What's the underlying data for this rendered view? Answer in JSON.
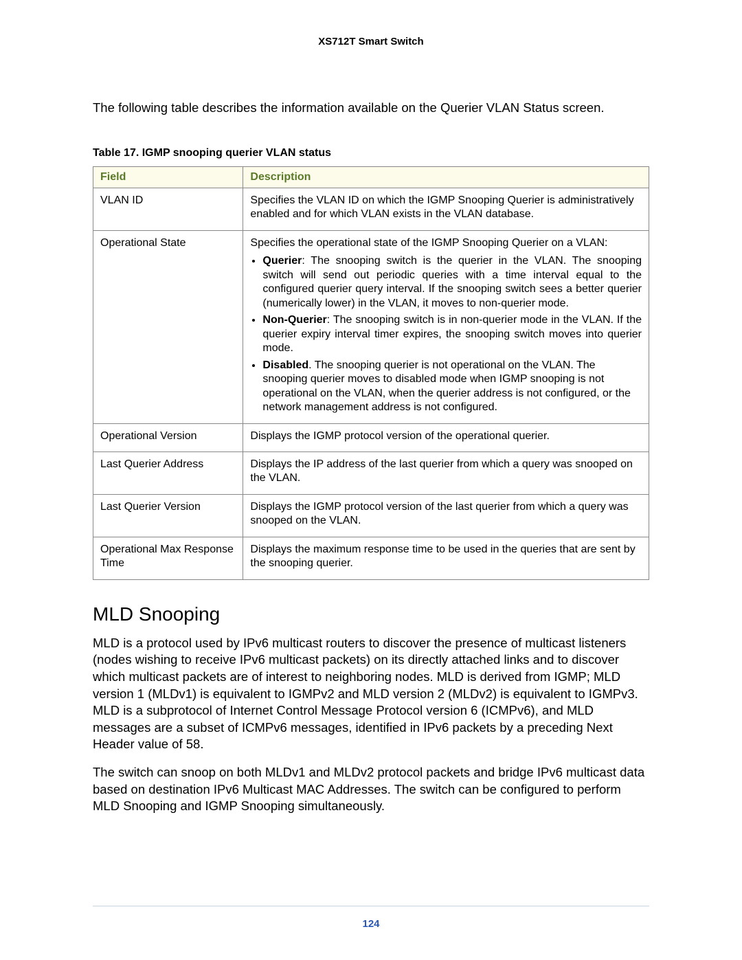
{
  "header": {
    "title": "XS712T Smart Switch"
  },
  "intro": "The following table describes the information available on the Querier VLAN Status screen.",
  "table": {
    "caption": "Table 17.  IGMP snooping querier VLAN status",
    "columns": [
      "Field",
      "Description"
    ],
    "header_bg": "#fdfcea",
    "header_fg": "#5a7a2a",
    "border_color": "#888888",
    "rows": {
      "r0": {
        "field": "VLAN ID",
        "desc": "Specifies the VLAN ID on which the IGMP Snooping Querier is administratively enabled and for which VLAN exists in the VLAN database."
      },
      "r1": {
        "field": "Operational State",
        "desc_lead": "Specifies the operational state of the IGMP Snooping Querier on a VLAN:",
        "b0_term": "Querier",
        "b0_text": ": The snooping switch is the querier in the VLAN. The snooping switch will send out periodic queries with a time interval equal to the configured querier query interval. If the snooping switch sees a better querier (numerically lower) in the VLAN, it moves to non-querier mode.",
        "b1_term": "Non-Querier",
        "b1_text": ": The snooping switch is in non-querier mode in the VLAN. If the querier expiry interval timer expires, the snooping switch moves into querier mode.",
        "b2_term": "Disabled",
        "b2_text": ". The snooping querier is not operational on the VLAN. The snooping querier moves to disabled mode when IGMP snooping is not operational on the VLAN, when the querier address is not configured, or the network management address is not configured."
      },
      "r2": {
        "field": "Operational Version",
        "desc": "Displays the IGMP protocol version of the operational querier."
      },
      "r3": {
        "field": "Last Querier Address",
        "desc": "Displays the IP address of the last querier from which a query was snooped on the VLAN."
      },
      "r4": {
        "field": "Last Querier Version",
        "desc": "Displays the IGMP protocol version of the last querier from which a query was snooped on the VLAN."
      },
      "r5": {
        "field": "Operational Max Response Time",
        "desc": "Displays the maximum response time to be used in the queries that are sent by the snooping querier."
      }
    }
  },
  "section": {
    "heading": "MLD Snooping",
    "p1": "MLD is a protocol used by IPv6 multicast routers to discover the presence of multicast listeners (nodes wishing to receive IPv6 multicast packets) on its directly attached links and to discover which multicast packets are of interest to neighboring nodes. MLD is derived from IGMP; MLD version 1 (MLDv1) is equivalent to IGMPv2 and MLD version 2 (MLDv2) is equivalent to IGMPv3. MLD is a subprotocol of Internet Control Message Protocol version 6 (ICMPv6), and MLD messages are a subset of ICMPv6 messages, identified in IPv6 packets by a preceding Next Header value of 58.",
    "p2": "The switch can snoop on both MLDv1 and MLDv2 protocol packets and bridge IPv6 multicast data based on destination IPv6 Multicast MAC Addresses. The switch can be configured to perform MLD Snooping and IGMP Snooping simultaneously."
  },
  "footer": {
    "page": "124",
    "page_color": "#2a58b5",
    "line_color": "#c8d4e0"
  }
}
